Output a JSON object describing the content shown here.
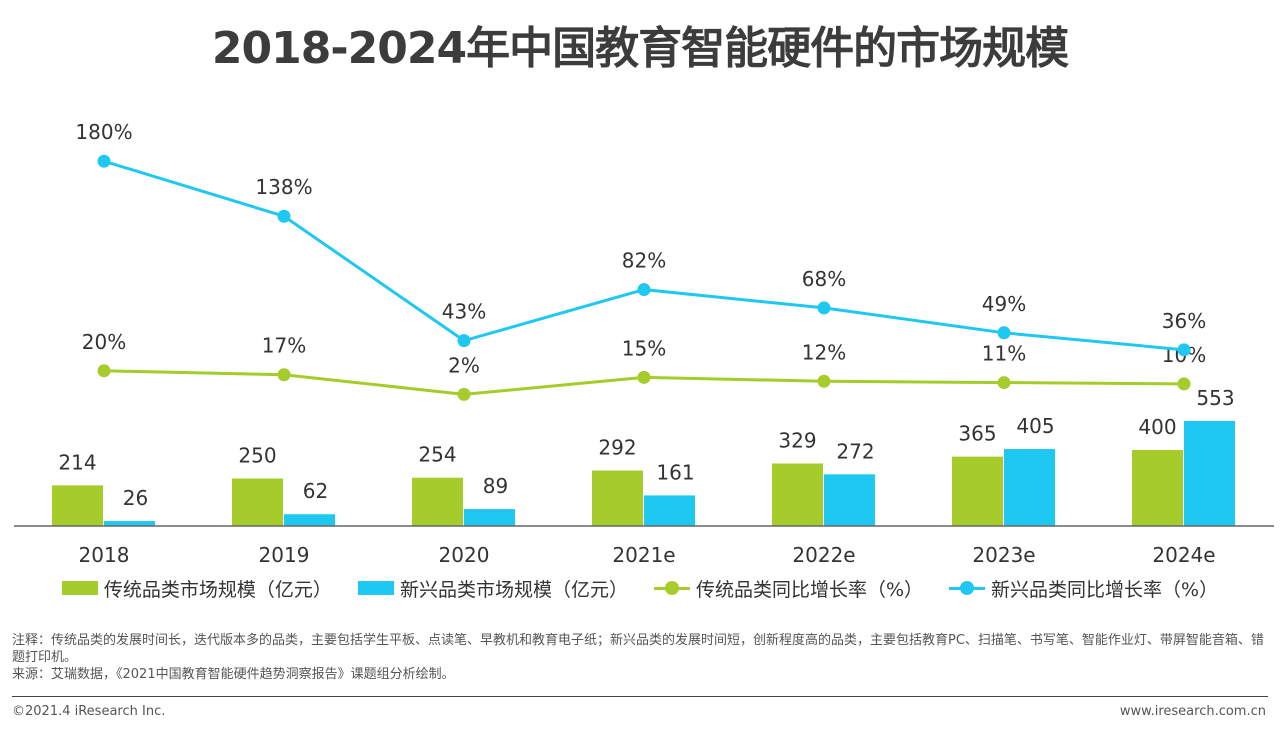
{
  "title": "2018-2024年中国教育智能硬件的市场规模",
  "colors": {
    "traditional": "#a5cc2a",
    "emerging": "#1ec8f0",
    "axis": "#666666"
  },
  "chart_data": {
    "type": "bar",
    "categories": [
      "2018",
      "2019",
      "2020",
      "2021e",
      "2022e",
      "2023e",
      "2024e"
    ],
    "series": [
      {
        "name": "传统品类市场规模（亿元）",
        "kind": "bar",
        "color": "#a5cc2a",
        "values": [
          214,
          250,
          254,
          292,
          329,
          365,
          400
        ]
      },
      {
        "name": "新兴品类市场规模（亿元）",
        "kind": "bar",
        "color": "#1ec8f0",
        "values": [
          26,
          62,
          89,
          161,
          272,
          405,
          553
        ]
      },
      {
        "name": "传统品类同比增长率（%）",
        "kind": "line",
        "color": "#a5cc2a",
        "values": [
          20,
          17,
          2,
          15,
          12,
          11,
          10
        ]
      },
      {
        "name": "新兴品类同比增长率（%）",
        "kind": "line",
        "color": "#1ec8f0",
        "values": [
          180,
          138,
          43,
          82,
          68,
          49,
          36
        ]
      }
    ],
    "legend_position": "bottom",
    "grid": false
  },
  "notes": [
    "注释：传统品类的发展时间长，迭代版本多的品类，主要包括学生平板、点读笔、早教机和教育电子纸；新兴品类的发展时间短，创新程度高的品类，主要包括教育PC、扫描笔、书写笔、智能作业灯、带屏智能音箱、错题打印机。",
    "来源：艾瑞数据，《2021中国教育智能硬件趋势洞察报告》课题组分析绘制。"
  ],
  "footer": {
    "copyright": "©2021.4 iResearch Inc.",
    "website": "www.iresearch.com.cn"
  }
}
